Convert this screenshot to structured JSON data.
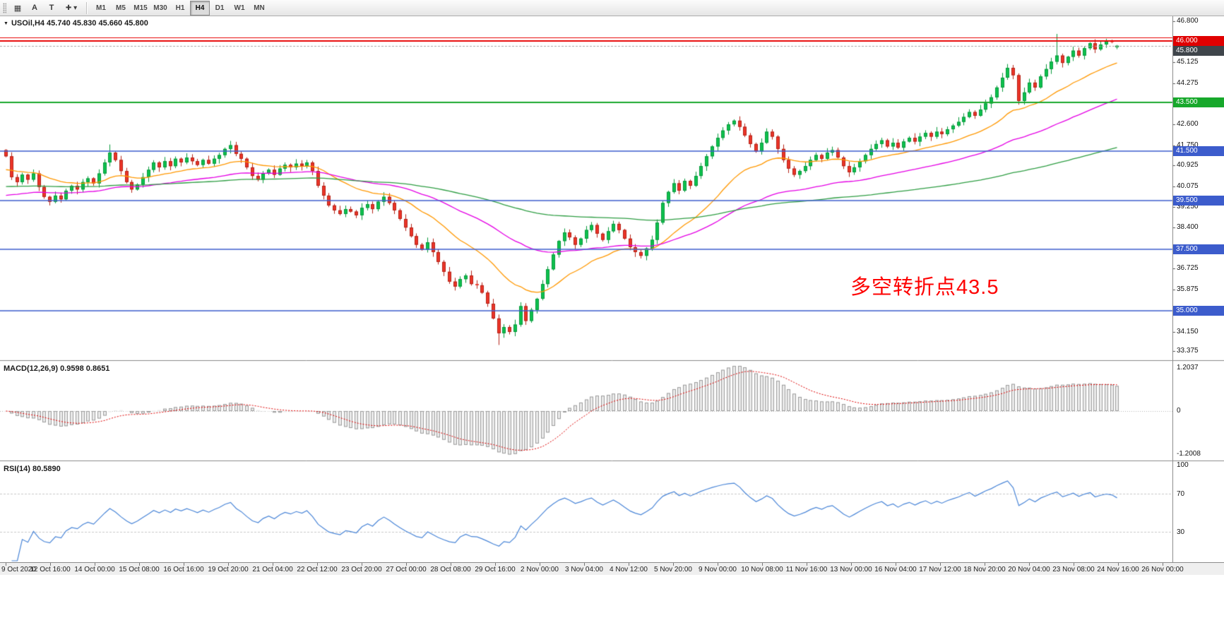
{
  "ui": {
    "collapse_icon": "▼",
    "header": "USOil,H4 45.740 45.830 45.660 45.800",
    "annotation": "多空转折点43.5",
    "annotation_color": "#fe0000",
    "macd_label": "MACD(12,26,9) 0.9598 0.8651",
    "rsi_label": "RSI(14) 80.5890",
    "toolbar": {
      "icons": [
        {
          "name": "chart-window-icon",
          "glyph": "▦"
        },
        {
          "name": "arrow-tool-icon",
          "glyph": "A"
        },
        {
          "name": "text-tool-icon",
          "glyph": "T"
        },
        {
          "name": "crosshair-tool-icon",
          "glyph": "✚ ▾"
        }
      ],
      "timeframes": [
        {
          "label": "M1",
          "active": false
        },
        {
          "label": "M5",
          "active": false
        },
        {
          "label": "M15",
          "active": false
        },
        {
          "label": "M30",
          "active": false
        },
        {
          "label": "H1",
          "active": false
        },
        {
          "label": "H4",
          "active": true
        },
        {
          "label": "D1",
          "active": false
        },
        {
          "label": "W1",
          "active": false
        },
        {
          "label": "MN",
          "active": false
        }
      ]
    }
  },
  "chart_data": {
    "type": "candlestick",
    "symbol": "USOil",
    "timeframe": "H4",
    "current_ohlc": {
      "open": "45.740",
      "high": "45.830",
      "low": "45.660",
      "close": "45.800"
    },
    "y_axis": {
      "top_price": 47.0,
      "bottom_price": 33.0,
      "labels": [
        {
          "text": "46.800",
          "price": 46.8
        },
        {
          "text": "45.125",
          "price": 45.125
        },
        {
          "text": "44.275",
          "price": 44.275
        },
        {
          "text": "42.600",
          "price": 42.6
        },
        {
          "text": "41.750",
          "price": 41.75
        },
        {
          "text": "40.925",
          "price": 40.925
        },
        {
          "text": "40.075",
          "price": 40.075
        },
        {
          "text": "39.250",
          "price": 39.25
        },
        {
          "text": "38.400",
          "price": 38.4
        },
        {
          "text": "36.725",
          "price": 36.725
        },
        {
          "text": "35.875",
          "price": 35.875
        },
        {
          "text": "34.150",
          "price": 34.15
        },
        {
          "text": "33.375",
          "price": 33.375
        }
      ]
    },
    "x_labels": [
      "9 Oct 2020",
      "12 Oct 16:00",
      "14 Oct 00:00",
      "15 Oct 08:00",
      "16 Oct 16:00",
      "19 Oct 20:00",
      "21 Oct 04:00",
      "22 Oct 12:00",
      "23 Oct 20:00",
      "27 Oct 00:00",
      "28 Oct 08:00",
      "29 Oct 16:00",
      "2 Nov 00:00",
      "3 Nov 04:00",
      "4 Nov 12:00",
      "5 Nov 20:00",
      "9 Nov 00:00",
      "10 Nov 08:00",
      "11 Nov 16:00",
      "13 Nov 00:00",
      "16 Nov 04:00",
      "17 Nov 12:00",
      "18 Nov 20:00",
      "20 Nov 04:00",
      "23 Nov 08:00",
      "24 Nov 16:00",
      "26 Nov 00:00"
    ],
    "candles": {
      "up_fill": "#0ec14e",
      "up_edge": "#089a3c",
      "down_fill": "#ec3428",
      "down_edge": "#b52318",
      "first_open": 41.55,
      "closes": [
        41.3,
        40.45,
        40.25,
        40.55,
        40.35,
        40.6,
        40.05,
        39.65,
        39.45,
        39.7,
        39.55,
        39.9,
        40.1,
        39.95,
        40.25,
        40.4,
        40.2,
        40.6,
        41.05,
        41.45,
        41.15,
        40.7,
        40.25,
        39.95,
        40.15,
        40.45,
        40.75,
        41.05,
        40.85,
        41.1,
        40.9,
        41.2,
        41.05,
        41.25,
        41.1,
        40.95,
        41.15,
        41.0,
        41.2,
        41.35,
        41.6,
        41.75,
        41.4,
        41.2,
        40.85,
        40.5,
        40.35,
        40.6,
        40.75,
        40.55,
        40.8,
        40.95,
        40.85,
        41.0,
        40.9,
        41.05,
        40.7,
        40.1,
        39.7,
        39.3,
        39.1,
        38.95,
        39.15,
        39.05,
        38.9,
        39.2,
        39.35,
        39.15,
        39.45,
        39.65,
        39.4,
        39.1,
        38.75,
        38.4,
        38.05,
        37.7,
        37.5,
        37.8,
        37.4,
        37.0,
        36.6,
        36.2,
        36.0,
        36.3,
        36.45,
        36.1,
        36.05,
        35.75,
        35.3,
        34.7,
        34.1,
        34.35,
        34.15,
        34.45,
        35.2,
        34.6,
        35.05,
        35.5,
        36.1,
        36.7,
        37.3,
        37.85,
        38.2,
        38.0,
        37.7,
        37.95,
        38.3,
        38.5,
        38.15,
        37.9,
        38.25,
        38.55,
        38.3,
        37.95,
        37.6,
        37.4,
        37.25,
        37.55,
        37.9,
        38.6,
        39.4,
        39.85,
        40.2,
        39.9,
        40.3,
        40.1,
        40.5,
        40.9,
        41.3,
        41.7,
        42.05,
        42.35,
        42.6,
        42.75,
        42.5,
        42.15,
        41.8,
        41.5,
        41.85,
        42.3,
        42.1,
        41.6,
        41.15,
        40.8,
        40.55,
        40.7,
        40.9,
        41.15,
        41.35,
        41.2,
        41.45,
        41.55,
        41.25,
        40.9,
        40.65,
        40.85,
        41.1,
        41.35,
        41.6,
        41.8,
        41.95,
        41.7,
        41.85,
        41.65,
        41.9,
        42.05,
        41.9,
        42.1,
        42.25,
        42.1,
        42.3,
        42.2,
        42.4,
        42.55,
        42.7,
        42.9,
        43.1,
        42.95,
        43.2,
        43.45,
        43.7,
        44.1,
        44.5,
        44.9,
        44.6,
        43.55,
        43.9,
        44.3,
        44.1,
        44.55,
        44.85,
        45.15,
        45.4,
        45.1,
        45.35,
        45.6,
        45.4,
        45.7,
        45.9,
        45.65,
        45.85,
        46.0,
        45.95,
        45.8
      ],
      "overrides": {
        "19": {
          "h": 41.78
        },
        "90": {
          "l": 33.62
        },
        "185": {
          "l": 43.4
        },
        "192": {
          "h": 46.28
        },
        "203": {
          "o": 45.74,
          "h": 45.83,
          "l": 45.66,
          "c": 45.8
        }
      }
    },
    "horizontal_lines": [
      {
        "price": 46.145,
        "color": "#e80000",
        "width": 1
      },
      {
        "price": 46.0,
        "color": "#e80000",
        "width": 2
      },
      {
        "price": 43.5,
        "color": "#17a82b",
        "width": 2
      },
      {
        "price": 41.5,
        "color": "#3c5ccc",
        "width": 1.5
      },
      {
        "price": 39.5,
        "color": "#3c5ccc",
        "width": 1.5
      },
      {
        "price": 37.5,
        "color": "#3c5ccc",
        "width": 1.5
      },
      {
        "price": 35.0,
        "color": "#3c5ccc",
        "width": 1.5
      }
    ],
    "price_badges": [
      {
        "text": "46.000",
        "price": 46.0,
        "bg": "#e00000"
      },
      {
        "text": "45.800",
        "price": 45.8,
        "bg": "#3f454b"
      },
      {
        "text": "43.500",
        "price": 43.5,
        "bg": "#17a82b"
      },
      {
        "text": "41.500",
        "price": 41.5,
        "bg": "#3c5ccc"
      },
      {
        "text": "39.500",
        "price": 39.5,
        "bg": "#3c5ccc"
      },
      {
        "text": "37.500",
        "price": 37.5,
        "bg": "#3c5ccc"
      },
      {
        "text": "35.000",
        "price": 35.0,
        "bg": "#3c5ccc"
      }
    ],
    "bid_line": {
      "price": 45.8,
      "color": "#a8a8a8"
    },
    "moving_averages": [
      {
        "period": 21,
        "color": "#ff9800",
        "seed": 40.7
      },
      {
        "period": 55,
        "color": "#e500e5",
        "seed": 39.65
      },
      {
        "period": 150,
        "color": "#2f9e44",
        "seed": 40.05
      }
    ],
    "macd": {
      "fast": 12,
      "slow": 26,
      "signal": 9,
      "values_text": "0.9598 0.8651",
      "axis_labels": [
        "1.2037",
        "0",
        "-1.2008"
      ],
      "hist_fill": "#ebebeb",
      "hist_edge": "#9c9c9c",
      "signal_color": "#e00000"
    },
    "rsi": {
      "period": 14,
      "value_text": "80.5890",
      "levels": [
        70,
        30
      ],
      "axis_labels": [
        "100",
        "70",
        "30"
      ],
      "line_color": "#4a86d8"
    }
  }
}
